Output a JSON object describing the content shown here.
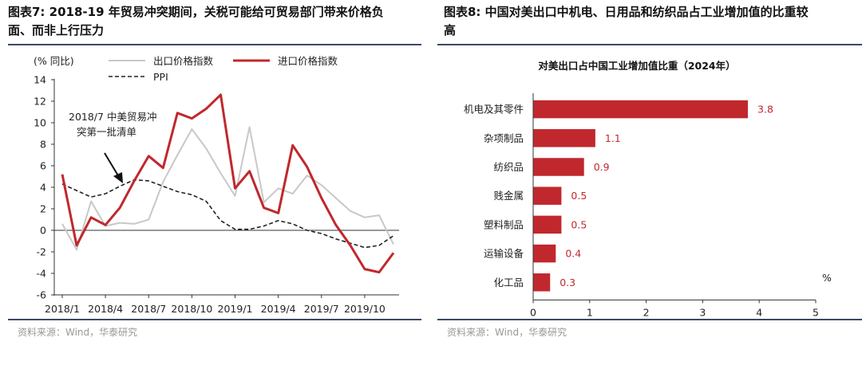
{
  "left": {
    "title_line1": "图表7:  2018-19 年贸易冲突期间，关税可能给可贸易部门带来价格负",
    "title_line2": "面、而非上行压力",
    "source": "资料来源：Wind，华泰研究",
    "colors": {
      "export": "#c8c8c8",
      "import": "#c0282d",
      "ppi": "#222222"
    },
    "chart_data": {
      "type": "line",
      "ylabel": "(% 同比)",
      "ylim": [
        -6,
        14
      ],
      "yticks": [
        14,
        12,
        10,
        8,
        6,
        4,
        2,
        0,
        -2,
        -4,
        -6
      ],
      "x_months": [
        "2018/1",
        "2018/2",
        "2018/3",
        "2018/4",
        "2018/5",
        "2018/6",
        "2018/7",
        "2018/8",
        "2018/9",
        "2018/10",
        "2018/11",
        "2018/12",
        "2019/1",
        "2019/2",
        "2019/3",
        "2019/4",
        "2019/5",
        "2019/6",
        "2019/7",
        "2019/8",
        "2019/9",
        "2019/10",
        "2019/11",
        "2019/12"
      ],
      "x_tick_labels": [
        "2018/1",
        "2018/4",
        "2018/7",
        "2018/10",
        "2019/1",
        "2019/4",
        "2019/7",
        "2019/10"
      ],
      "x_tick_indices": [
        0,
        3,
        6,
        9,
        12,
        15,
        18,
        21
      ],
      "series": [
        {
          "name": "出口价格指数",
          "values": [
            0.6,
            -1.8,
            2.7,
            0.4,
            0.7,
            0.6,
            1.0,
            4.5,
            7.0,
            9.4,
            7.6,
            5.3,
            3.2,
            9.6,
            2.6,
            3.9,
            3.4,
            5.1,
            4.2,
            3.0,
            1.8,
            1.2,
            1.4,
            -1.3
          ]
        },
        {
          "name": "进口价格指数",
          "values": [
            5.2,
            -1.4,
            1.2,
            0.5,
            2.1,
            4.6,
            6.9,
            5.8,
            10.9,
            10.4,
            11.3,
            12.6,
            3.9,
            5.5,
            2.1,
            1.6,
            7.9,
            5.9,
            3.0,
            0.5,
            -1.4,
            -3.6,
            -3.9,
            -2.1
          ]
        },
        {
          "name": "PPI",
          "values": [
            4.3,
            3.7,
            3.1,
            3.4,
            4.1,
            4.7,
            4.6,
            4.1,
            3.6,
            3.3,
            2.7,
            0.9,
            0.1,
            0.1,
            0.4,
            0.9,
            0.6,
            0.0,
            -0.3,
            -0.8,
            -1.2,
            -1.6,
            -1.4,
            -0.5
          ]
        }
      ],
      "annotation": {
        "line1": "2018/7 中美贸易冲",
        "line2": "突第一批清单"
      }
    }
  },
  "right": {
    "title_line1": "图表8:  中国对美出口中机电、日用品和纺织品占工业增加值的比重较",
    "title_line2": "高",
    "source": "资料来源：Wind，华泰研究",
    "bar_color": "#c0282d",
    "chart_data": {
      "type": "bar",
      "orientation": "horizontal",
      "title": "对美出口占中国工业增加值比重（2024年）",
      "categories": [
        "机电及其零件",
        "杂项制品",
        "纺织品",
        "贱金属",
        "塑料制品",
        "运输设备",
        "化工品"
      ],
      "values": [
        3.8,
        1.1,
        0.9,
        0.5,
        0.5,
        0.4,
        0.3
      ],
      "value_labels": [
        "3.8",
        "1.1",
        "0.9",
        "0.5",
        "0.5",
        "0.4",
        "0.3"
      ],
      "xlim": [
        0,
        5
      ],
      "xticks": [
        "0",
        "1",
        "2",
        "3",
        "4",
        "5"
      ],
      "unit": "%"
    }
  }
}
